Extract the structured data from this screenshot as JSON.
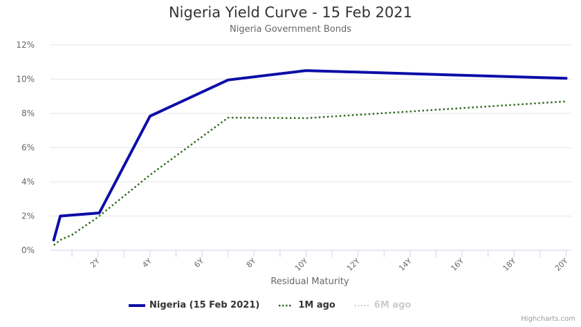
{
  "header": {
    "title": "Nigeria Yield Curve - 15 Feb 2021",
    "subtitle": "Nigeria Government Bonds"
  },
  "axes": {
    "x_title": "Residual Maturity",
    "y_ticks": [
      "0%",
      "2%",
      "4%",
      "6%",
      "8%",
      "10%",
      "12%"
    ],
    "x_ticks": [
      "2Y",
      "4Y",
      "6Y",
      "8Y",
      "10Y",
      "12Y",
      "14Y",
      "16Y",
      "18Y",
      "20Y"
    ]
  },
  "legend": {
    "items": [
      {
        "label": "Nigeria (15 Feb 2021)",
        "color": "#0d0da8",
        "style": "solid",
        "visible": true
      },
      {
        "label": "1M ago",
        "color": "#2e6b1f",
        "style": "dotted",
        "visible": true
      },
      {
        "label": "6M ago",
        "color": "#cccccc",
        "style": "dotted",
        "visible": false
      }
    ]
  },
  "credits": "Highcharts.com",
  "chart_data": {
    "type": "line",
    "title": "Nigeria Yield Curve - 15 Feb 2021",
    "subtitle": "Nigeria Government Bonds",
    "xlabel": "Residual Maturity",
    "ylabel": "",
    "xlim": [
      0,
      20
    ],
    "ylim": [
      0,
      12
    ],
    "y_unit": "%",
    "grid": true,
    "legend_position": "bottom",
    "series": [
      {
        "name": "Nigeria (15 Feb 2021)",
        "color": "#0d0da8",
        "dash": "solid",
        "x": [
          0.3,
          0.55,
          2.05,
          4.0,
          7.0,
          10.0,
          20.0
        ],
        "values": [
          0.6,
          2.0,
          2.18,
          7.84,
          9.95,
          10.5,
          10.05
        ]
      },
      {
        "name": "1M ago",
        "color": "#2e6b1f",
        "dash": "dotted",
        "x": [
          0.3,
          0.55,
          1.0,
          2.0,
          4.0,
          7.0,
          10.0,
          20.0
        ],
        "values": [
          0.3,
          0.6,
          0.9,
          1.94,
          4.4,
          7.75,
          7.72,
          8.7
        ]
      },
      {
        "name": "6M ago",
        "color": "#cccccc",
        "dash": "dotted",
        "hidden": true,
        "x": [],
        "values": []
      }
    ]
  }
}
